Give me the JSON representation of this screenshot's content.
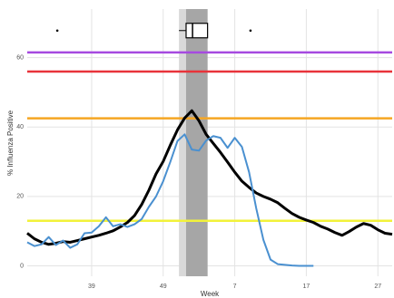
{
  "chart_data": {
    "type": "line",
    "xlabel": "Week",
    "ylabel": "% Influenza Positive",
    "x": [
      30,
      31,
      32,
      33,
      34,
      35,
      36,
      37,
      38,
      39,
      40,
      41,
      42,
      43,
      44,
      45,
      46,
      47,
      48,
      49,
      50,
      51,
      52,
      53,
      54,
      55,
      56,
      57,
      58,
      59,
      60,
      61,
      62,
      63,
      64,
      65,
      66,
      67,
      68,
      69,
      70,
      71,
      72,
      73,
      74,
      75,
      76,
      77,
      78,
      79,
      80,
      81
    ],
    "series": [
      {
        "color": "#000000",
        "values": [
          9.4,
          7.8,
          6.8,
          6.2,
          6.5,
          7,
          6.8,
          7.3,
          7.8,
          8.3,
          8.8,
          9.4,
          10.1,
          11.2,
          12.5,
          14.5,
          17.7,
          21.8,
          26.5,
          30.1,
          34.8,
          39.2,
          42.6,
          44.7,
          41.8,
          37.9,
          35.3,
          32.7,
          29.9,
          27,
          24.4,
          22.6,
          21,
          20,
          19.2,
          18.2,
          16.6,
          15.1,
          14,
          13.2,
          12.5,
          11.4,
          10.6,
          9.6,
          8.8,
          9.9,
          11.2,
          12.2,
          11.7,
          10.4,
          9.4,
          9.1
        ]
      },
      {
        "color": "#4a90d0",
        "values": [
          6.8,
          5.7,
          6.2,
          8.3,
          6,
          7.3,
          5.2,
          6.2,
          9.4,
          9.6,
          11.4,
          14,
          11.4,
          12,
          11.2,
          12,
          13.5,
          17,
          20,
          24.4,
          30,
          36,
          37.9,
          33.5,
          33.2,
          36.1,
          37.4,
          36.9,
          34,
          36.9,
          34.3,
          27,
          16.6,
          7.5,
          1.8,
          0.5,
          0.3,
          0.1,
          0,
          0,
          0,
          null,
          null,
          null,
          null,
          null,
          null,
          null,
          null,
          null,
          null,
          null
        ]
      }
    ],
    "thresholds": [
      {
        "value": 61.5,
        "color": "#a64ae0"
      },
      {
        "value": 56,
        "color": "#e8333a"
      },
      {
        "value": 42.5,
        "color": "#f5a623"
      },
      {
        "value": 13,
        "color": "#f2f23a"
      }
    ],
    "bands": [
      {
        "x": [
          51.2,
          55.2
        ],
        "color": "#d9d9d9"
      },
      {
        "x": [
          52.2,
          55.2
        ],
        "color": "#a6a6a6"
      }
    ],
    "boxplot": {
      "y": 67.8,
      "whislo": 51.2,
      "q1": 52.2,
      "med": 53.1,
      "q3": 55.2,
      "whishi": 55.2,
      "outliers": [
        34.2,
        61.2
      ]
    },
    "xlim": [
      30,
      81
    ],
    "ylim": [
      -3,
      74
    ],
    "xticks": [
      39,
      49,
      {
        "value": 59,
        "label": "7"
      },
      {
        "value": 69,
        "label": "17"
      },
      {
        "value": 79,
        "label": "27"
      }
    ],
    "yticks": [
      0,
      20,
      40,
      60
    ],
    "grid": true
  }
}
